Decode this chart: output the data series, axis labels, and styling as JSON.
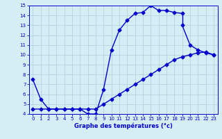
{
  "line1_x": [
    0,
    1,
    2,
    3,
    4,
    5,
    6,
    7,
    8,
    9,
    10,
    11,
    12,
    13,
    14,
    15,
    16,
    17,
    18,
    19
  ],
  "line1_y": [
    7.5,
    5.5,
    4.5,
    4.5,
    4.5,
    4.5,
    4.5,
    4.0,
    4.0,
    6.5,
    10.5,
    12.5,
    13.5,
    14.2,
    14.3,
    15.0,
    14.5,
    14.5,
    14.3,
    14.2
  ],
  "line2_x": [
    19,
    20,
    21,
    22,
    23
  ],
  "line2_y": [
    13.0,
    11.0,
    10.5,
    10.2,
    10.0
  ],
  "line3_x": [
    0,
    1,
    2,
    3,
    4,
    5,
    6,
    7,
    8,
    9,
    10,
    11,
    12,
    13,
    14,
    15,
    16,
    17,
    18,
    19,
    20,
    21,
    22,
    23
  ],
  "line3_y": [
    4.5,
    4.5,
    4.5,
    4.5,
    4.5,
    4.5,
    4.5,
    4.5,
    4.5,
    5.0,
    5.5,
    6.0,
    6.5,
    7.0,
    7.5,
    8.0,
    8.5,
    9.0,
    9.5,
    9.8,
    10.0,
    10.2,
    10.3,
    10.0
  ],
  "ylim": [
    4,
    15
  ],
  "xlim": [
    -0.5,
    23.5
  ],
  "yticks": [
    4,
    5,
    6,
    7,
    8,
    9,
    10,
    11,
    12,
    13,
    14,
    15
  ],
  "xticks": [
    0,
    1,
    2,
    3,
    4,
    5,
    6,
    7,
    8,
    9,
    10,
    11,
    12,
    13,
    14,
    15,
    16,
    17,
    18,
    19,
    20,
    21,
    22,
    23
  ],
  "xlabel": "Graphe des températures (°c)",
  "line_color": "#0000cc",
  "bg_color": "#d5edf5",
  "grid_color": "#aaccdd",
  "marker": "D",
  "marker_size": 2.5,
  "line_width": 1.0
}
